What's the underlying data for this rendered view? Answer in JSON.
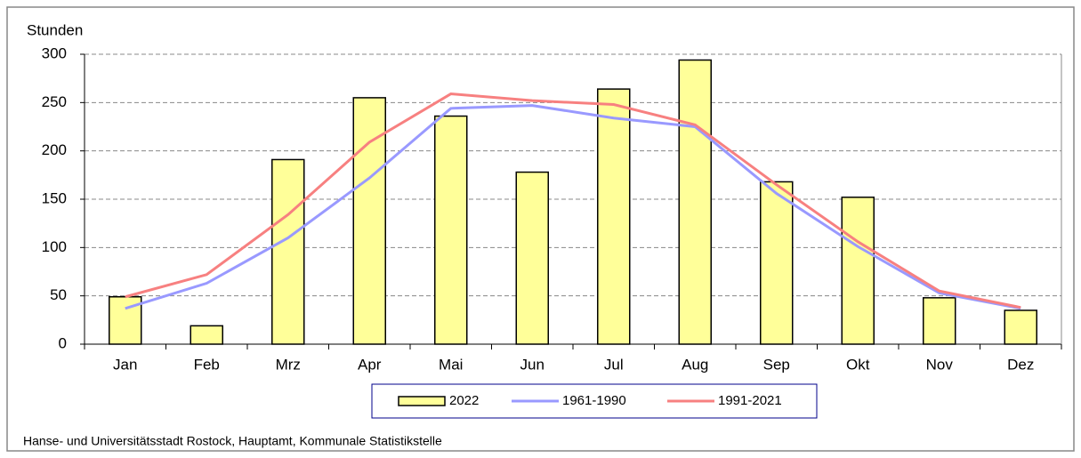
{
  "chart_data": {
    "type": "bar",
    "y_label": "Stunden",
    "source": "Hanse- und Universitätsstadt Rostock, Hauptamt, Kommunale Statistikstelle",
    "categories": [
      "Jan",
      "Feb",
      "Mrz",
      "Apr",
      "Mai",
      "Jun",
      "Jul",
      "Aug",
      "Sep",
      "Okt",
      "Nov",
      "Dez"
    ],
    "series": [
      {
        "name": "2022",
        "type": "bar",
        "color": "#ffff99",
        "values": [
          49,
          19,
          191,
          255,
          236,
          178,
          264,
          294,
          168,
          152,
          48,
          35
        ]
      },
      {
        "name": "1961-1990",
        "type": "line",
        "color": "#9999ff",
        "values": [
          37,
          63,
          110,
          172,
          244,
          247,
          234,
          225,
          156,
          101,
          53,
          37
        ]
      },
      {
        "name": "1991-2021",
        "type": "line",
        "color": "#f78080",
        "values": [
          49,
          72,
          134,
          209,
          259,
          252,
          248,
          227,
          165,
          106,
          55,
          38
        ]
      }
    ],
    "ylim": [
      0,
      300
    ],
    "yticks": [
      0,
      50,
      100,
      150,
      200,
      250,
      300
    ],
    "grid": true,
    "legend": "bottom"
  }
}
